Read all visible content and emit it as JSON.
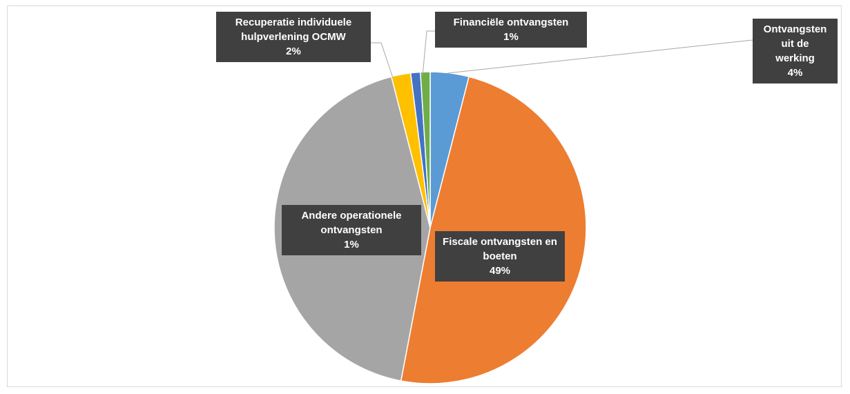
{
  "chart_data": {
    "type": "pie",
    "categories": [
      "Ontvangsten uit de werking",
      "Fiscale ontvangsten en boeten",
      null,
      "Recuperatie individuele hulpverlening OCMW",
      "Andere operationele ontvangsten",
      "Financiële ontvangsten"
    ],
    "values": [
      4,
      49,
      43,
      2,
      1,
      1
    ],
    "value_labels": [
      "4%",
      "49%",
      null,
      "2%",
      "1%",
      "1%"
    ],
    "colors": [
      "#5b9bd5",
      "#ed7d31",
      "#a5a5a5",
      "#ffc000",
      "#4472c4",
      "#70ad47"
    ]
  }
}
